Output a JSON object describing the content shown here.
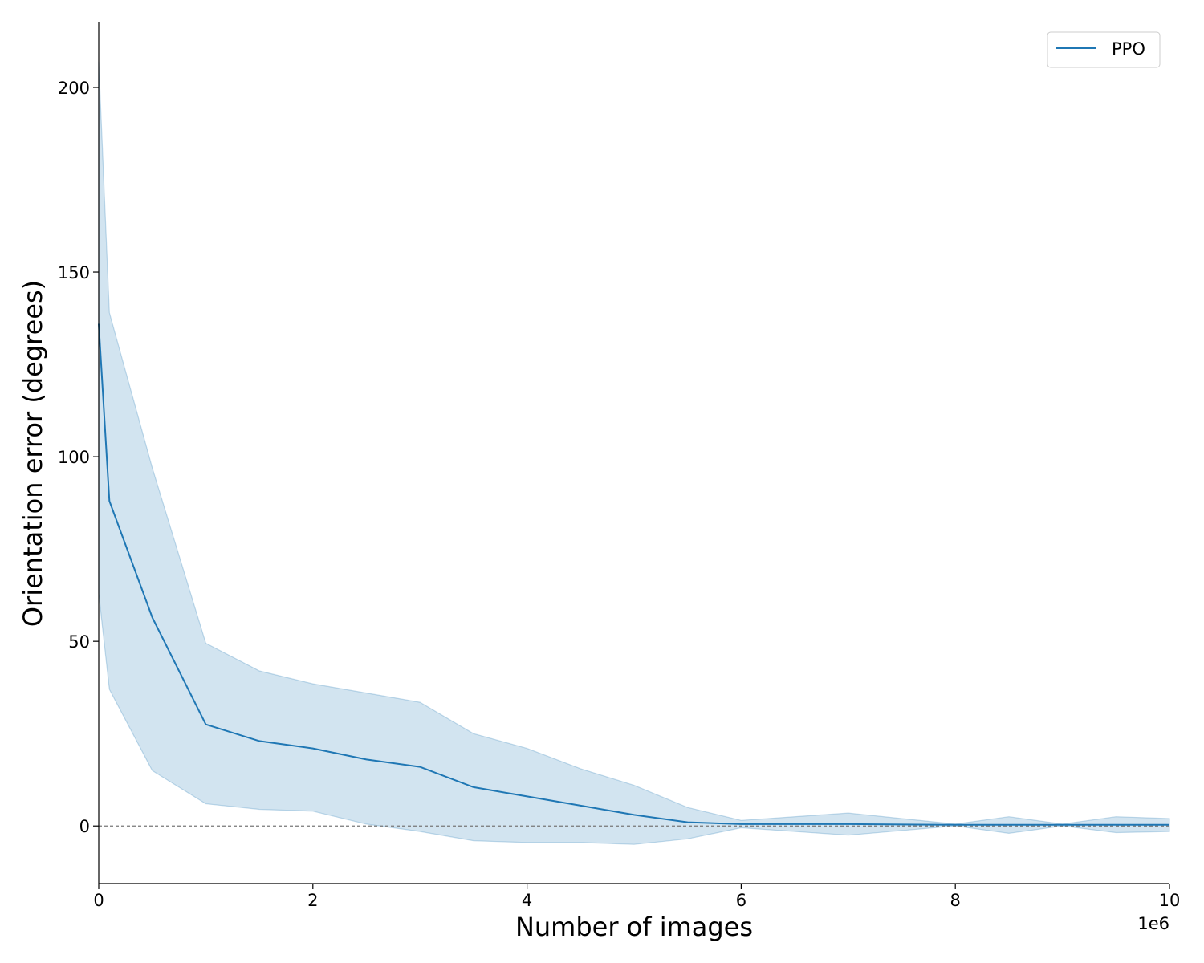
{
  "chart_data": {
    "type": "line",
    "title": "",
    "xlabel": "Number of images",
    "ylabel": "Orientation error (degrees)",
    "x_offset_label": "1e6",
    "xlim": [
      0,
      10
    ],
    "ylim": [
      -15.6,
      217.6
    ],
    "x_ticks": [
      0,
      2,
      4,
      6,
      8,
      10
    ],
    "y_ticks": [
      0,
      50,
      100,
      150,
      200
    ],
    "x_tick_labels": [
      "0",
      "2",
      "4",
      "6",
      "8",
      "10"
    ],
    "y_tick_labels": [
      "0",
      "50",
      "100",
      "150",
      "200"
    ],
    "reference_line": {
      "y": 0,
      "style": "dashed",
      "color": "#777777"
    },
    "legend": {
      "position": "top-right",
      "entries": [
        "PPO"
      ]
    },
    "series": [
      {
        "name": "PPO",
        "color": "#1f77b4",
        "band_color": "#1f77b4",
        "x": [
          0,
          0.1,
          0.5,
          1.0,
          1.5,
          2.0,
          2.5,
          3.0,
          3.5,
          4.0,
          4.5,
          5.0,
          5.5,
          6.0,
          7.0,
          8.0,
          8.5,
          9.0,
          9.5,
          10.0
        ],
        "y": [
          136,
          88,
          56.5,
          27.5,
          23,
          21,
          18,
          16,
          10.5,
          8,
          5.5,
          3,
          1,
          0.5,
          0.5,
          0.3,
          0.3,
          0.3,
          0.3,
          0.3
        ],
        "upper": [
          207,
          139,
          97,
          49.5,
          42,
          38.5,
          36,
          33.5,
          25,
          21,
          15.5,
          11,
          5,
          1.5,
          3.5,
          0.5,
          2.5,
          0.5,
          2.5,
          2
        ],
        "lower": [
          63,
          37,
          15,
          6,
          4.5,
          4,
          0.5,
          -1.5,
          -4,
          -4.5,
          -4.5,
          -5,
          -3.5,
          -0.5,
          -2.5,
          0,
          -2,
          0,
          -1.8,
          -1.5
        ]
      }
    ]
  }
}
